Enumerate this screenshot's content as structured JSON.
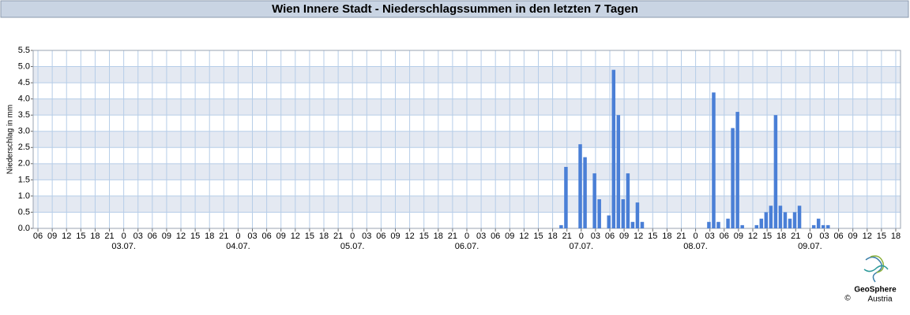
{
  "chart_data": {
    "type": "bar",
    "title": "Wien Innere Stadt - Niederschlagssummen in den letzten 7 Tagen",
    "ylabel": "Niederschlag in mm",
    "color": "#4a7fd6",
    "grid": true,
    "x": [
      116,
      117,
      120,
      121,
      123,
      124,
      126,
      127,
      128,
      129,
      130,
      131,
      132,
      133,
      147,
      148,
      149,
      151,
      152,
      153,
      154,
      157,
      158,
      159,
      160,
      161,
      162,
      163,
      164,
      165,
      166,
      169,
      170,
      171,
      172
    ],
    "values": [
      0.1,
      1.9,
      2.6,
      2.2,
      1.7,
      0.9,
      0.4,
      4.9,
      3.5,
      0.9,
      1.7,
      0.2,
      0.8,
      0.2,
      0.2,
      4.2,
      0.2,
      0.3,
      3.1,
      3.6,
      0.1,
      0.1,
      0.3,
      0.5,
      0.7,
      3.5,
      0.7,
      0.5,
      0.3,
      0.5,
      0.7,
      0.1,
      0.3,
      0.1,
      0.1
    ],
    "xlim": [
      5,
      187
    ],
    "ylim": [
      0,
      5.5
    ],
    "yticks": [
      {
        "value": 0,
        "label": "0.0"
      },
      {
        "value": 0.5,
        "label": "0.5"
      },
      {
        "value": 1,
        "label": "1.0"
      },
      {
        "value": 1.5,
        "label": "1.5"
      },
      {
        "value": 2,
        "label": "2.0"
      },
      {
        "value": 2.5,
        "label": "2.5"
      },
      {
        "value": 3,
        "label": "3.0"
      },
      {
        "value": 3.5,
        "label": "3.5"
      },
      {
        "value": 4,
        "label": "4.0"
      },
      {
        "value": 4.5,
        "label": "4.5"
      },
      {
        "value": 5,
        "label": "5.0"
      },
      {
        "value": 5.5,
        "label": "5.5"
      }
    ],
    "xticks": [
      {
        "value": 6,
        "label": "06"
      },
      {
        "value": 9,
        "label": "09"
      },
      {
        "value": 12,
        "label": "12"
      },
      {
        "value": 15,
        "label": "15"
      },
      {
        "value": 18,
        "label": "18"
      },
      {
        "value": 21,
        "label": "21"
      },
      {
        "value": 24,
        "label": "0"
      },
      {
        "value": 27,
        "label": "03"
      },
      {
        "value": 30,
        "label": "06"
      },
      {
        "value": 33,
        "label": "09"
      },
      {
        "value": 36,
        "label": "12"
      },
      {
        "value": 39,
        "label": "15"
      },
      {
        "value": 42,
        "label": "18"
      },
      {
        "value": 45,
        "label": "21"
      },
      {
        "value": 48,
        "label": "0"
      },
      {
        "value": 51,
        "label": "03"
      },
      {
        "value": 54,
        "label": "06"
      },
      {
        "value": 57,
        "label": "09"
      },
      {
        "value": 60,
        "label": "12"
      },
      {
        "value": 63,
        "label": "15"
      },
      {
        "value": 66,
        "label": "18"
      },
      {
        "value": 69,
        "label": "21"
      },
      {
        "value": 72,
        "label": "0"
      },
      {
        "value": 75,
        "label": "03"
      },
      {
        "value": 78,
        "label": "06"
      },
      {
        "value": 81,
        "label": "09"
      },
      {
        "value": 84,
        "label": "12"
      },
      {
        "value": 87,
        "label": "15"
      },
      {
        "value": 90,
        "label": "18"
      },
      {
        "value": 93,
        "label": "21"
      },
      {
        "value": 96,
        "label": "0"
      },
      {
        "value": 99,
        "label": "03"
      },
      {
        "value": 102,
        "label": "06"
      },
      {
        "value": 105,
        "label": "09"
      },
      {
        "value": 108,
        "label": "12"
      },
      {
        "value": 111,
        "label": "15"
      },
      {
        "value": 114,
        "label": "18"
      },
      {
        "value": 117,
        "label": "21"
      },
      {
        "value": 120,
        "label": "0"
      },
      {
        "value": 123,
        "label": "03"
      },
      {
        "value": 126,
        "label": "06"
      },
      {
        "value": 129,
        "label": "09"
      },
      {
        "value": 132,
        "label": "12"
      },
      {
        "value": 135,
        "label": "15"
      },
      {
        "value": 138,
        "label": "18"
      },
      {
        "value": 141,
        "label": "21"
      },
      {
        "value": 144,
        "label": "0"
      },
      {
        "value": 147,
        "label": "03"
      },
      {
        "value": 150,
        "label": "06"
      },
      {
        "value": 153,
        "label": "09"
      },
      {
        "value": 156,
        "label": "12"
      },
      {
        "value": 159,
        "label": "15"
      },
      {
        "value": 162,
        "label": "18"
      },
      {
        "value": 165,
        "label": "21"
      },
      {
        "value": 168,
        "label": "0"
      },
      {
        "value": 171,
        "label": "03"
      },
      {
        "value": 174,
        "label": "06"
      },
      {
        "value": 177,
        "label": "09"
      },
      {
        "value": 180,
        "label": "12"
      },
      {
        "value": 183,
        "label": "15"
      },
      {
        "value": 186,
        "label": "18"
      }
    ],
    "date_ticks": [
      {
        "value": 24,
        "label": "03.07."
      },
      {
        "value": 48,
        "label": "04.07."
      },
      {
        "value": 72,
        "label": "05.07."
      },
      {
        "value": 96,
        "label": "06.07."
      },
      {
        "value": 120,
        "label": "07.07."
      },
      {
        "value": 144,
        "label": "08.07."
      },
      {
        "value": 168,
        "label": "09.07."
      }
    ]
  },
  "logo": {
    "name": "GeoSphere",
    "copyright": "©",
    "country": "Austria"
  }
}
